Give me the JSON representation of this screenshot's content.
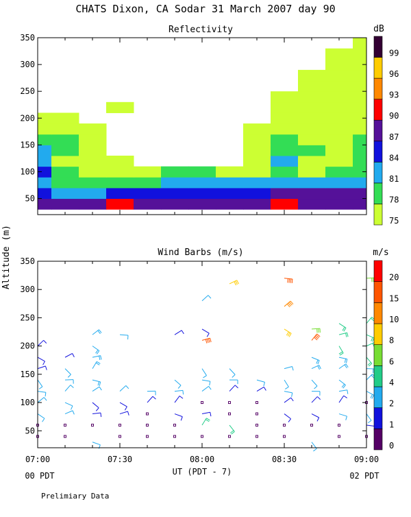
{
  "page": {
    "title": "CHATS Dixon, CA   Sodar   31 March 2007   day  90",
    "y_axis_label": "Altitude (m)",
    "x_axis_label": "UT  (PDT - 7)",
    "x_left_sub": "00 PDT",
    "x_right_sub": "02 PDT",
    "footer": "Prelimiary Data"
  },
  "chart_data": [
    {
      "type": "heatmap",
      "title": "Reflectivity",
      "ylim": [
        20,
        350
      ],
      "yticks": [
        50,
        100,
        150,
        200,
        250,
        300,
        350
      ],
      "xlim": [
        "07:00",
        "09:00"
      ],
      "xticks": [
        "07:00",
        "07:30",
        "08:00",
        "08:30",
        "09:00"
      ],
      "x_hours": [
        7.0,
        9.0
      ],
      "colorbar": {
        "unit": "dB",
        "levels": [
          75,
          78,
          81,
          84,
          87,
          90,
          93,
          96,
          99
        ],
        "colors": [
          "#ccff33",
          "#33dd55",
          "#22aaee",
          "#1111dd",
          "#551199",
          "#ff0000",
          "#ff8800",
          "#ffcc00",
          "#330033"
        ]
      },
      "altitudes": [
        40,
        60,
        80,
        100,
        120,
        140,
        160,
        180,
        200,
        220,
        240,
        260,
        280,
        300,
        320,
        340,
        360
      ],
      "times": [
        "07:00",
        "07:10",
        "07:20",
        "07:30",
        "07:40",
        "07:50",
        "08:00",
        "08:10",
        "08:20",
        "08:30",
        "08:40",
        "08:50",
        "09:00"
      ],
      "values": [
        [
          89,
          87,
          87,
          90,
          87,
          88,
          88,
          88,
          89,
          90,
          89,
          88,
          88
        ],
        [
          84,
          83,
          82,
          84,
          84,
          84,
          85,
          86,
          86,
          87,
          87,
          87,
          87
        ],
        [
          83,
          80,
          80,
          79,
          80,
          81,
          82,
          82,
          82,
          83,
          83,
          82,
          81
        ],
        [
          84,
          80,
          77,
          75,
          77,
          78,
          78,
          77,
          77,
          78,
          77,
          78,
          78
        ],
        [
          82,
          77,
          76,
          75,
          74,
          74,
          74,
          74,
          75,
          81,
          77,
          75,
          78
        ],
        [
          81,
          78,
          75,
          74,
          74,
          74,
          74,
          74,
          75,
          79,
          78,
          77,
          78
        ],
        [
          79,
          79,
          75,
          74,
          74,
          74,
          74,
          74,
          75,
          78,
          77,
          77,
          78
        ],
        [
          77,
          76,
          75,
          74,
          74,
          74,
          74,
          74,
          75,
          77,
          76,
          75,
          76
        ],
        [
          76,
          75,
          74,
          74,
          74,
          74,
          74,
          74,
          74,
          75,
          75,
          75,
          75
        ],
        [
          74,
          74,
          74,
          75,
          74,
          74,
          74,
          74,
          74,
          75,
          75,
          75,
          75
        ],
        [
          74,
          74,
          74,
          74,
          74,
          74,
          74,
          74,
          74,
          75,
          75,
          75,
          75
        ],
        [
          74,
          74,
          74,
          74,
          74,
          74,
          74,
          74,
          74,
          74,
          75,
          75,
          75
        ],
        [
          74,
          74,
          74,
          74,
          74,
          74,
          74,
          74,
          74,
          74,
          75,
          75,
          75
        ],
        [
          74,
          74,
          74,
          74,
          74,
          74,
          74,
          74,
          74,
          74,
          74,
          75,
          75
        ],
        [
          74,
          74,
          74,
          74,
          74,
          74,
          74,
          74,
          74,
          74,
          74,
          75,
          75
        ],
        [
          74,
          74,
          74,
          74,
          74,
          74,
          74,
          74,
          74,
          74,
          74,
          74,
          75
        ],
        [
          74,
          74,
          74,
          74,
          74,
          74,
          74,
          74,
          74,
          74,
          74,
          74,
          75
        ]
      ]
    },
    {
      "type": "scatter",
      "title": "Wind Barbs (m/s)",
      "ylim": [
        20,
        350
      ],
      "yticks": [
        50,
        100,
        150,
        200,
        250,
        300,
        350
      ],
      "xlim": [
        "07:00",
        "09:00"
      ],
      "xticks": [
        "07:00",
        "07:30",
        "08:00",
        "08:30",
        "09:00"
      ],
      "x_hours": [
        7.0,
        9.0
      ],
      "colorbar": {
        "unit": "m/s",
        "levels": [
          0,
          1,
          2,
          4,
          6,
          8,
          10,
          15,
          20
        ],
        "colors": [
          "#550066",
          "#1111dd",
          "#22aaee",
          "#22cc88",
          "#77dd33",
          "#ffcc00",
          "#ff8800",
          "#ff5500",
          "#ff0000"
        ]
      },
      "times": [
        "07:00",
        "07:05",
        "07:10",
        "07:15",
        "07:20",
        "07:25",
        "07:30",
        "07:35",
        "07:40",
        "07:45",
        "07:50",
        "07:55",
        "08:00",
        "08:05",
        "08:10",
        "08:15",
        "08:20",
        "08:25",
        "08:30",
        "08:35",
        "08:40",
        "08:45",
        "08:50",
        "08:55",
        "09:00"
      ],
      "barbs": [
        {
          "t": "07:00",
          "alt": 40,
          "speed": 0.5
        },
        {
          "t": "07:00",
          "alt": 60,
          "speed": 0.5
        },
        {
          "t": "07:00",
          "alt": 80,
          "speed": 2.5
        },
        {
          "t": "07:00",
          "alt": 100,
          "speed": 2.5
        },
        {
          "t": "07:00",
          "alt": 120,
          "speed": 2.5
        },
        {
          "t": "07:00",
          "alt": 140,
          "speed": 2.5
        },
        {
          "t": "07:00",
          "alt": 160,
          "speed": 1.5
        },
        {
          "t": "07:00",
          "alt": 180,
          "speed": 1.5
        },
        {
          "t": "07:00",
          "alt": 200,
          "speed": 1.5
        },
        {
          "t": "07:10",
          "alt": 40,
          "speed": 0.5
        },
        {
          "t": "07:10",
          "alt": 60,
          "speed": 0.5
        },
        {
          "t": "07:10",
          "alt": 80,
          "speed": 2.5
        },
        {
          "t": "07:10",
          "alt": 100,
          "speed": 2.5
        },
        {
          "t": "07:10",
          "alt": 120,
          "speed": 2.5
        },
        {
          "t": "07:10",
          "alt": 140,
          "speed": 2.5
        },
        {
          "t": "07:10",
          "alt": 160,
          "speed": 2.5
        },
        {
          "t": "07:10",
          "alt": 180,
          "speed": 1.5
        },
        {
          "t": "07:20",
          "alt": 30,
          "speed": 2.5
        },
        {
          "t": "07:20",
          "alt": 60,
          "speed": 0.5
        },
        {
          "t": "07:20",
          "alt": 80,
          "speed": 1.5
        },
        {
          "t": "07:20",
          "alt": 100,
          "speed": 1.5
        },
        {
          "t": "07:20",
          "alt": 120,
          "speed": 2.5
        },
        {
          "t": "07:20",
          "alt": 140,
          "speed": 3.5
        },
        {
          "t": "07:20",
          "alt": 160,
          "speed": 3.5
        },
        {
          "t": "07:20",
          "alt": 180,
          "speed": 3.5
        },
        {
          "t": "07:20",
          "alt": 200,
          "speed": 3.5
        },
        {
          "t": "07:20",
          "alt": 220,
          "speed": 3.5
        },
        {
          "t": "07:30",
          "alt": 40,
          "speed": 0.5
        },
        {
          "t": "07:30",
          "alt": 60,
          "speed": 0.5
        },
        {
          "t": "07:30",
          "alt": 80,
          "speed": 1.5
        },
        {
          "t": "07:30",
          "alt": 100,
          "speed": 1.5
        },
        {
          "t": "07:30",
          "alt": 120,
          "speed": 2.5
        },
        {
          "t": "07:30",
          "alt": 220,
          "speed": 2.5
        },
        {
          "t": "07:40",
          "alt": 40,
          "speed": 0.5
        },
        {
          "t": "07:40",
          "alt": 60,
          "speed": 0.5
        },
        {
          "t": "07:40",
          "alt": 80,
          "speed": 0.5
        },
        {
          "t": "07:40",
          "alt": 100,
          "speed": 1.5
        },
        {
          "t": "07:40",
          "alt": 120,
          "speed": 2.5
        },
        {
          "t": "07:50",
          "alt": 40,
          "speed": 0.5
        },
        {
          "t": "07:50",
          "alt": 60,
          "speed": 0.5
        },
        {
          "t": "07:50",
          "alt": 80,
          "speed": 1.5
        },
        {
          "t": "07:50",
          "alt": 100,
          "speed": 1.5
        },
        {
          "t": "07:50",
          "alt": 120,
          "speed": 2.5
        },
        {
          "t": "07:50",
          "alt": 140,
          "speed": 2.5
        },
        {
          "t": "07:50",
          "alt": 220,
          "speed": 1.5
        },
        {
          "t": "08:00",
          "alt": 40,
          "speed": 0.5
        },
        {
          "t": "08:00",
          "alt": 60,
          "speed": 5.5
        },
        {
          "t": "08:00",
          "alt": 80,
          "speed": 1.5
        },
        {
          "t": "08:00",
          "alt": 100,
          "speed": 0.5
        },
        {
          "t": "08:00",
          "alt": 120,
          "speed": 2.5
        },
        {
          "t": "08:00",
          "alt": 140,
          "speed": 2.5
        },
        {
          "t": "08:00",
          "alt": 160,
          "speed": 2.5
        },
        {
          "t": "08:00",
          "alt": 210,
          "speed": 18
        },
        {
          "t": "08:00",
          "alt": 230,
          "speed": 1.5
        },
        {
          "t": "08:00",
          "alt": 280,
          "speed": 2.5
        },
        {
          "t": "08:10",
          "alt": 40,
          "speed": 0.5
        },
        {
          "t": "08:10",
          "alt": 60,
          "speed": 5.5
        },
        {
          "t": "08:10",
          "alt": 80,
          "speed": 0.5
        },
        {
          "t": "08:10",
          "alt": 100,
          "speed": 0.5
        },
        {
          "t": "08:10",
          "alt": 120,
          "speed": 1.5
        },
        {
          "t": "08:10",
          "alt": 140,
          "speed": 2.5
        },
        {
          "t": "08:10",
          "alt": 160,
          "speed": 2.5
        },
        {
          "t": "08:10",
          "alt": 310,
          "speed": 9
        },
        {
          "t": "08:20",
          "alt": 40,
          "speed": 0.5
        },
        {
          "t": "08:20",
          "alt": 60,
          "speed": 0.5
        },
        {
          "t": "08:20",
          "alt": 80,
          "speed": 0.5
        },
        {
          "t": "08:20",
          "alt": 100,
          "speed": 0.5
        },
        {
          "t": "08:20",
          "alt": 120,
          "speed": 1.5
        },
        {
          "t": "08:20",
          "alt": 140,
          "speed": 2.5
        },
        {
          "t": "08:30",
          "alt": 40,
          "speed": 0.5
        },
        {
          "t": "08:30",
          "alt": 60,
          "speed": 0.5
        },
        {
          "t": "08:30",
          "alt": 80,
          "speed": 1.5
        },
        {
          "t": "08:30",
          "alt": 100,
          "speed": 1.5
        },
        {
          "t": "08:30",
          "alt": 120,
          "speed": 2.5
        },
        {
          "t": "08:30",
          "alt": 140,
          "speed": 2.5
        },
        {
          "t": "08:30",
          "alt": 160,
          "speed": 2.5
        },
        {
          "t": "08:30",
          "alt": 230,
          "speed": 9
        },
        {
          "t": "08:30",
          "alt": 270,
          "speed": 11
        },
        {
          "t": "08:30",
          "alt": 320,
          "speed": 18
        },
        {
          "t": "08:40",
          "alt": 30,
          "speed": 2.5
        },
        {
          "t": "08:40",
          "alt": 60,
          "speed": 0.5
        },
        {
          "t": "08:40",
          "alt": 80,
          "speed": 1.5
        },
        {
          "t": "08:40",
          "alt": 100,
          "speed": 1.5
        },
        {
          "t": "08:40",
          "alt": 120,
          "speed": 2.5
        },
        {
          "t": "08:40",
          "alt": 140,
          "speed": 2.5
        },
        {
          "t": "08:40",
          "alt": 160,
          "speed": 3.5
        },
        {
          "t": "08:40",
          "alt": 180,
          "speed": 3.5
        },
        {
          "t": "08:40",
          "alt": 210,
          "speed": 18
        },
        {
          "t": "08:40",
          "alt": 230,
          "speed": 7
        },
        {
          "t": "08:50",
          "alt": 40,
          "speed": 0.5
        },
        {
          "t": "08:50",
          "alt": 60,
          "speed": 0.5
        },
        {
          "t": "08:50",
          "alt": 80,
          "speed": 2.5
        },
        {
          "t": "08:50",
          "alt": 100,
          "speed": 1.5
        },
        {
          "t": "08:50",
          "alt": 120,
          "speed": 2.5
        },
        {
          "t": "08:50",
          "alt": 140,
          "speed": 3.5
        },
        {
          "t": "08:50",
          "alt": 160,
          "speed": 3.5
        },
        {
          "t": "08:50",
          "alt": 180,
          "speed": 3.5
        },
        {
          "t": "08:50",
          "alt": 200,
          "speed": 5.5
        },
        {
          "t": "08:50",
          "alt": 220,
          "speed": 5.5
        },
        {
          "t": "08:50",
          "alt": 240,
          "speed": 5.5
        },
        {
          "t": "09:00",
          "alt": 40,
          "speed": 0.5
        },
        {
          "t": "09:00",
          "alt": 60,
          "speed": 1.5
        },
        {
          "t": "09:00",
          "alt": 80,
          "speed": 2.5
        },
        {
          "t": "09:00",
          "alt": 100,
          "speed": 0.5
        },
        {
          "t": "09:00",
          "alt": 120,
          "speed": 3.5
        },
        {
          "t": "09:00",
          "alt": 140,
          "speed": 3.5
        },
        {
          "t": "09:00",
          "alt": 160,
          "speed": 3.5
        },
        {
          "t": "09:00",
          "alt": 180,
          "speed": 5.5
        },
        {
          "t": "09:00",
          "alt": 200,
          "speed": 5.5
        },
        {
          "t": "09:00",
          "alt": 220,
          "speed": 5.5
        },
        {
          "t": "09:00",
          "alt": 240,
          "speed": 5.5
        },
        {
          "t": "09:00",
          "alt": 320,
          "speed": 7
        }
      ]
    }
  ]
}
